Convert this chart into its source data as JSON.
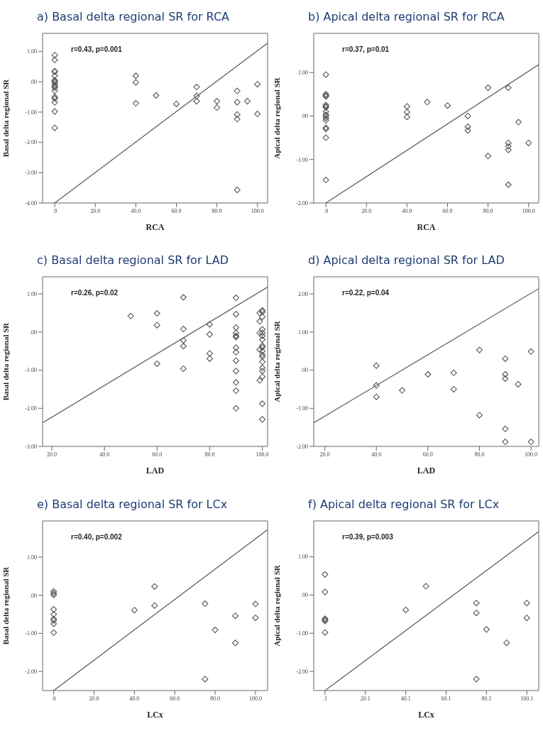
{
  "chart_data": [
    {
      "type": "scatter",
      "title": "a) Basal delta regional SR for RCA",
      "xlabel": "RCA",
      "ylabel": "Basal delta regional SR",
      "marker": "diamond",
      "annotations": [
        "r=0.43, p=0.001"
      ],
      "xlim": [
        -6,
        105
      ],
      "ylim": [
        -4,
        1.6
      ],
      "xticks": [
        {
          "value": 0,
          "label": ".0"
        },
        {
          "value": 20,
          "label": "20.0"
        },
        {
          "value": 40,
          "label": "40.0"
        },
        {
          "value": 60,
          "label": "60.0"
        },
        {
          "value": 80,
          "label": "80.0"
        },
        {
          "value": 100,
          "label": "100.0"
        }
      ],
      "yticks": [
        {
          "value": -4,
          "label": "-4.00"
        },
        {
          "value": -3,
          "label": "-3.00"
        },
        {
          "value": -2,
          "label": "-2.00"
        },
        {
          "value": -1,
          "label": "-1.00"
        },
        {
          "value": 0,
          "label": ".00"
        },
        {
          "value": 1,
          "label": "1.00"
        }
      ],
      "series": [
        {
          "color": "#555555",
          "x": [
            0,
            0,
            0,
            0,
            0,
            0,
            0,
            0,
            0,
            0,
            0,
            0,
            0,
            0,
            0,
            0,
            0,
            40,
            40,
            40,
            50,
            60,
            70,
            70,
            70,
            80,
            80,
            90,
            90,
            90,
            90,
            90,
            95,
            100,
            100
          ],
          "values": [
            0.88,
            0.72,
            0.35,
            0.33,
            0.2,
            0.05,
            0.02,
            -0.02,
            -0.1,
            -0.15,
            -0.2,
            -0.3,
            -0.5,
            -0.55,
            -0.68,
            -0.98,
            -1.52,
            0.2,
            -0.02,
            -0.71,
            -0.45,
            -0.73,
            -0.17,
            -0.47,
            -0.64,
            -0.64,
            -0.85,
            -0.3,
            -0.67,
            -1.08,
            -1.23,
            -3.57,
            -0.64,
            -0.08,
            -1.06
          ]
        },
        {
          "type": "line",
          "marker": "none",
          "color": "#555555",
          "x": [
            0,
            105
          ],
          "values": [
            -4,
            1.28
          ]
        }
      ]
    },
    {
      "type": "scatter",
      "title": "b) Apical delta regional SR for RCA",
      "xlabel": "RCA",
      "ylabel": "Apical delta regional SR",
      "marker": "diamond",
      "annotations": [
        "r=0.37, p=0.01"
      ],
      "xlim": [
        -6,
        105
      ],
      "ylim": [
        -2,
        1.9
      ],
      "xticks": [
        {
          "value": 0,
          "label": ".0"
        },
        {
          "value": 20,
          "label": "20.0"
        },
        {
          "value": 40,
          "label": "40.0"
        },
        {
          "value": 60,
          "label": "60.0"
        },
        {
          "value": 80,
          "label": "80.0"
        },
        {
          "value": 100,
          "label": "100.0"
        }
      ],
      "yticks": [
        {
          "value": -2,
          "label": "-2.00"
        },
        {
          "value": -1,
          "label": "-1.00"
        },
        {
          "value": 0,
          "label": ".00"
        },
        {
          "value": 1,
          "label": "1.00"
        }
      ],
      "series": [
        {
          "color": "#555555",
          "x": [
            0,
            0,
            0,
            0,
            0,
            0,
            0,
            0,
            0,
            0,
            0,
            0,
            0,
            0,
            0,
            0,
            40,
            40,
            40,
            50,
            60,
            70,
            70,
            70,
            80,
            80,
            90,
            90,
            90,
            90,
            90,
            95,
            100
          ],
          "values": [
            0.95,
            0.5,
            0.47,
            0.45,
            0.25,
            0.22,
            0.2,
            0.1,
            0.03,
            0.0,
            -0.05,
            -0.1,
            -0.27,
            -0.3,
            -0.5,
            -1.47,
            0.22,
            0.09,
            -0.02,
            0.32,
            0.24,
            0.0,
            -0.25,
            -0.33,
            0.65,
            -0.92,
            0.65,
            -0.62,
            -0.7,
            -0.78,
            -1.58,
            -0.14,
            -0.62
          ]
        },
        {
          "type": "line",
          "marker": "none",
          "color": "#555555",
          "x": [
            0,
            105
          ],
          "values": [
            -2,
            1.18
          ]
        }
      ]
    },
    {
      "type": "scatter",
      "title": "c) Basal delta regional SR for LAD",
      "xlabel": "LAD",
      "ylabel": "Basal delta regional SR",
      "marker": "diamond",
      "annotations": [
        "r=0.26, p=0.02"
      ],
      "xlim": [
        16.5,
        102
      ],
      "ylim": [
        -3,
        1.45
      ],
      "xticks": [
        {
          "value": 20,
          "label": "20.0"
        },
        {
          "value": 40,
          "label": "40.0"
        },
        {
          "value": 60,
          "label": "60.0"
        },
        {
          "value": 80,
          "label": "80.0"
        },
        {
          "value": 100,
          "label": "100.0"
        }
      ],
      "yticks": [
        {
          "value": -3,
          "label": "-3.00"
        },
        {
          "value": -2,
          "label": "-2.00"
        },
        {
          "value": -1,
          "label": "-1.00"
        },
        {
          "value": 0,
          "label": ".00"
        },
        {
          "value": 1,
          "label": "1.00"
        }
      ],
      "series": [
        {
          "color": "#555555",
          "x": [
            50,
            60,
            60,
            60,
            70,
            70,
            70,
            70,
            70,
            80,
            80,
            80,
            80,
            90,
            90,
            90,
            90,
            90,
            90,
            90,
            90,
            90,
            90,
            90,
            90,
            90,
            99,
            99,
            99,
            99,
            99,
            100,
            100,
            100,
            100,
            100,
            100,
            100,
            100,
            100,
            100,
            100,
            100,
            100,
            100,
            100,
            100,
            100,
            100
          ],
          "values": [
            0.42,
            0.49,
            0.18,
            -0.83,
            0.91,
            0.08,
            -0.22,
            -0.37,
            -0.96,
            0.2,
            -0.06,
            -0.56,
            -0.7,
            0.9,
            0.47,
            0.12,
            -0.02,
            -0.1,
            -0.13,
            -0.41,
            -0.53,
            -0.75,
            -1.02,
            -1.32,
            -1.54,
            -2.0,
            0.5,
            0.28,
            -0.02,
            -0.46,
            -1.27,
            0.57,
            0.53,
            0.4,
            0.07,
            -0.02,
            -0.1,
            -0.2,
            -0.36,
            -0.4,
            -0.5,
            -0.6,
            -0.65,
            -0.78,
            -0.94,
            -1.02,
            -1.17,
            -1.88,
            -2.29
          ]
        },
        {
          "type": "line",
          "marker": "none",
          "color": "#555555",
          "x": [
            16.5,
            102
          ],
          "values": [
            -2.38,
            1.18
          ]
        }
      ]
    },
    {
      "type": "scatter",
      "title": "d) Apical delta regional SR for LAD",
      "xlabel": "LAD",
      "ylabel": "Apical delta regional SR",
      "marker": "diamond",
      "annotations": [
        "r=0.22, p=0.04"
      ],
      "xlim": [
        15.7,
        103
      ],
      "ylim": [
        -2,
        2.45
      ],
      "xticks": [
        {
          "value": 20,
          "label": "20.0"
        },
        {
          "value": 40,
          "label": "40.0"
        },
        {
          "value": 60,
          "label": "60.0"
        },
        {
          "value": 80,
          "label": "80.0"
        },
        {
          "value": 100,
          "label": "100.0"
        }
      ],
      "yticks": [
        {
          "value": -2,
          "label": "-2.00"
        },
        {
          "value": -1,
          "label": "-1.00"
        },
        {
          "value": 0,
          "label": ".00"
        },
        {
          "value": 1,
          "label": "1.00"
        },
        {
          "value": 2,
          "label": "2.00"
        }
      ],
      "series": [
        {
          "color": "#555555",
          "x": [
            40,
            40,
            40,
            50,
            60,
            70,
            70,
            80,
            80,
            90,
            90,
            90,
            90,
            90,
            95,
            100,
            100
          ],
          "values": [
            0.12,
            -0.4,
            -0.7,
            -0.53,
            -0.11,
            -0.07,
            -0.5,
            0.53,
            -1.18,
            0.3,
            -0.11,
            -0.22,
            -1.54,
            -1.88,
            -0.37,
            0.49,
            -1.88
          ]
        },
        {
          "type": "line",
          "marker": "none",
          "color": "#555555",
          "x": [
            15.7,
            103
          ],
          "values": [
            -1.38,
            2.14
          ]
        }
      ]
    },
    {
      "type": "scatter",
      "title": "e) Basal delta regional SR for LCx",
      "xlabel": "LCx",
      "ylabel": "Basal delta regional SR",
      "marker": "diamond",
      "annotations": [
        "r=0.40, p=0.002"
      ],
      "xlim": [
        -5.5,
        106
      ],
      "ylim": [
        -2.5,
        1.95
      ],
      "xticks": [
        {
          "value": 0,
          "label": ".0"
        },
        {
          "value": 20,
          "label": "20.0"
        },
        {
          "value": 40,
          "label": "40.0"
        },
        {
          "value": 60,
          "label": "60.0"
        },
        {
          "value": 80,
          "label": "80.0"
        },
        {
          "value": 100,
          "label": "100.0"
        }
      ],
      "yticks": [
        {
          "value": -2,
          "label": "-2.00"
        },
        {
          "value": -1,
          "label": "-1.00"
        },
        {
          "value": 0,
          "label": ".00"
        },
        {
          "value": 1,
          "label": "1.00"
        }
      ],
      "series": [
        {
          "color": "#555555",
          "x": [
            0,
            0,
            0,
            0,
            0,
            0,
            0,
            0,
            0,
            40,
            50,
            50,
            75,
            75,
            80,
            90,
            90,
            100,
            100
          ],
          "values": [
            0.1,
            0.05,
            0.01,
            -0.37,
            -0.5,
            -0.62,
            -0.66,
            -0.75,
            -0.98,
            -0.39,
            0.23,
            -0.27,
            -0.22,
            -2.2,
            -0.91,
            -0.54,
            -1.25,
            -0.23,
            -0.59
          ]
        },
        {
          "type": "line",
          "marker": "none",
          "color": "#555555",
          "x": [
            0,
            106
          ],
          "values": [
            -2.5,
            1.72
          ]
        }
      ]
    },
    {
      "type": "scatter",
      "title": "f) Apical delta regional SR for LCx",
      "xlabel": "LCx",
      "ylabel": "Apical delta regional SR",
      "marker": "diamond",
      "annotations": [
        "r=0.39, p=0.003"
      ],
      "xlim": [
        -5.5,
        106
      ],
      "ylim": [
        -2.5,
        1.94
      ],
      "xticks": [
        {
          "value": 0.1,
          "label": ".1"
        },
        {
          "value": 20.1,
          "label": "20.1"
        },
        {
          "value": 40.1,
          "label": "40.1"
        },
        {
          "value": 60.1,
          "label": "60.1"
        },
        {
          "value": 80.1,
          "label": "80.1"
        },
        {
          "value": 100.1,
          "label": "100.1"
        }
      ],
      "yticks": [
        {
          "value": -2,
          "label": "-2.00"
        },
        {
          "value": -1,
          "label": "-1.00"
        },
        {
          "value": 0,
          "label": ".00"
        },
        {
          "value": 1,
          "label": "1.00"
        }
      ],
      "series": [
        {
          "color": "#555555",
          "x": [
            0.1,
            0.1,
            0.1,
            0.1,
            0.1,
            0.1,
            40.1,
            50.1,
            75.1,
            75.1,
            75.1,
            80.1,
            90.1,
            100.1,
            100.1
          ],
          "values": [
            0.54,
            0.08,
            -0.62,
            -0.65,
            -0.68,
            -0.98,
            -0.39,
            0.23,
            -0.21,
            -0.47,
            -2.2,
            -0.9,
            -1.25,
            -0.21,
            -0.6
          ]
        },
        {
          "type": "line",
          "marker": "none",
          "color": "#555555",
          "x": [
            0.1,
            106
          ],
          "values": [
            -2.5,
            1.66
          ]
        }
      ]
    }
  ]
}
